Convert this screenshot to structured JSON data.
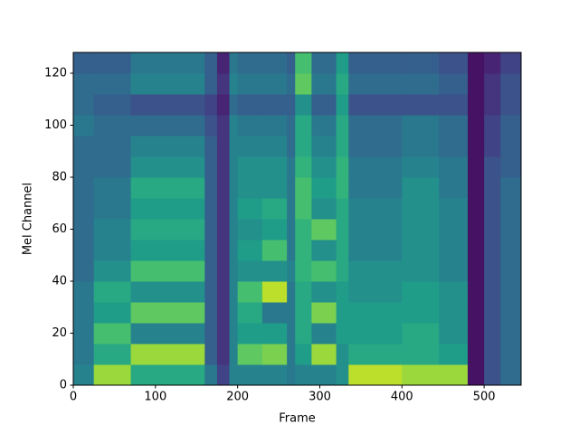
{
  "chart_data": {
    "type": "heatmap",
    "colormap": "viridis",
    "x_label": "Frame",
    "y_label": "Mel Channel",
    "xlim": [
      0,
      545
    ],
    "ylim": [
      0,
      128
    ],
    "xticks": [
      0,
      100,
      200,
      300,
      400,
      500
    ],
    "yticks": [
      0,
      20,
      40,
      60,
      80,
      100,
      120
    ],
    "x_bins": [
      0,
      25,
      70,
      160,
      175,
      190,
      200,
      230,
      260,
      270,
      290,
      320,
      335,
      400,
      445,
      480,
      500,
      520,
      545
    ],
    "y_bins": [
      0,
      8,
      16,
      24,
      32,
      40,
      48,
      56,
      64,
      72,
      80,
      88,
      96,
      104,
      112,
      120,
      128
    ],
    "values": [
      [
        0.45,
        0.4,
        0.4,
        0.4,
        0.4,
        0.35,
        0.35,
        0.35,
        0.35,
        0.35,
        0.35,
        0.35,
        0.4,
        0.35,
        0.35,
        0.3
      ],
      [
        0.85,
        0.6,
        0.7,
        0.55,
        0.6,
        0.5,
        0.45,
        0.45,
        0.4,
        0.4,
        0.35,
        0.35,
        0.35,
        0.3,
        0.35,
        0.3
      ],
      [
        0.6,
        0.85,
        0.45,
        0.75,
        0.5,
        0.7,
        0.55,
        0.6,
        0.55,
        0.6,
        0.5,
        0.45,
        0.35,
        0.25,
        0.45,
        0.4
      ],
      [
        0.4,
        0.3,
        0.3,
        0.3,
        0.3,
        0.3,
        0.3,
        0.3,
        0.3,
        0.3,
        0.3,
        0.3,
        0.25,
        0.2,
        0.3,
        0.3
      ],
      [
        0.2,
        0.15,
        0.15,
        0.15,
        0.15,
        0.15,
        0.15,
        0.15,
        0.15,
        0.15,
        0.15,
        0.15,
        0.15,
        0.1,
        0.15,
        0.1
      ],
      [
        0.45,
        0.45,
        0.45,
        0.45,
        0.45,
        0.45,
        0.45,
        0.45,
        0.45,
        0.45,
        0.45,
        0.45,
        0.45,
        0.35,
        0.45,
        0.4
      ],
      [
        0.45,
        0.75,
        0.55,
        0.6,
        0.7,
        0.5,
        0.55,
        0.5,
        0.55,
        0.5,
        0.5,
        0.45,
        0.4,
        0.3,
        0.4,
        0.35
      ],
      [
        0.45,
        0.8,
        0.55,
        0.4,
        0.9,
        0.5,
        0.7,
        0.55,
        0.6,
        0.5,
        0.5,
        0.45,
        0.4,
        0.3,
        0.4,
        0.35
      ],
      [
        0.4,
        0.4,
        0.4,
        0.4,
        0.4,
        0.45,
        0.4,
        0.4,
        0.4,
        0.4,
        0.4,
        0.35,
        0.35,
        0.3,
        0.35,
        0.3
      ],
      [
        0.45,
        0.55,
        0.6,
        0.6,
        0.6,
        0.65,
        0.65,
        0.65,
        0.7,
        0.7,
        0.65,
        0.6,
        0.6,
        0.5,
        0.75,
        0.7
      ],
      [
        0.45,
        0.85,
        0.45,
        0.8,
        0.5,
        0.7,
        0.5,
        0.75,
        0.5,
        0.55,
        0.5,
        0.45,
        0.4,
        0.3,
        0.4,
        0.35
      ],
      [
        0.5,
        0.5,
        0.55,
        0.55,
        0.55,
        0.6,
        0.6,
        0.6,
        0.6,
        0.65,
        0.65,
        0.6,
        0.6,
        0.55,
        0.6,
        0.55
      ],
      [
        0.9,
        0.6,
        0.55,
        0.55,
        0.5,
        0.5,
        0.45,
        0.45,
        0.45,
        0.4,
        0.4,
        0.35,
        0.35,
        0.25,
        0.35,
        0.3
      ],
      [
        0.85,
        0.6,
        0.6,
        0.55,
        0.55,
        0.5,
        0.5,
        0.5,
        0.5,
        0.5,
        0.45,
        0.4,
        0.4,
        0.25,
        0.35,
        0.3
      ],
      [
        0.85,
        0.55,
        0.5,
        0.5,
        0.5,
        0.45,
        0.45,
        0.45,
        0.45,
        0.4,
        0.4,
        0.35,
        0.35,
        0.25,
        0.3,
        0.25
      ],
      [
        0.05,
        0.05,
        0.05,
        0.05,
        0.05,
        0.05,
        0.05,
        0.05,
        0.05,
        0.05,
        0.05,
        0.05,
        0.05,
        0.05,
        0.05,
        0.05
      ],
      [
        0.25,
        0.25,
        0.25,
        0.25,
        0.25,
        0.25,
        0.25,
        0.25,
        0.25,
        0.25,
        0.25,
        0.2,
        0.2,
        0.15,
        0.15,
        0.1
      ],
      [
        0.35,
        0.35,
        0.35,
        0.35,
        0.35,
        0.35,
        0.35,
        0.35,
        0.35,
        0.35,
        0.3,
        0.3,
        0.3,
        0.25,
        0.25,
        0.2
      ]
    ]
  }
}
